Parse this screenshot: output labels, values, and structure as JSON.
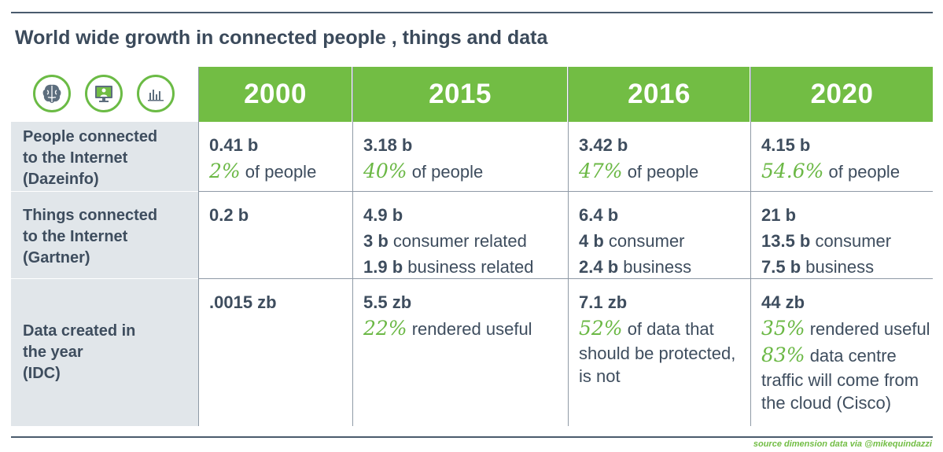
{
  "title": "World wide growth in connected people , things and data",
  "icons": [
    "brain-icon",
    "monitor-person-icon",
    "bar-chart-icon"
  ],
  "colors": {
    "accent": "#72bd44",
    "label_bg": "#e1e6ea",
    "text": "#3e4d5e"
  },
  "years": [
    "2000",
    "2015",
    "2016",
    "2020"
  ],
  "rows": [
    {
      "label": [
        "People connected",
        "to the Internet",
        "(Dazeinfo)"
      ],
      "cells": [
        {
          "value": "0.41 b",
          "pct": "2%",
          "pct_text": " of people"
        },
        {
          "value": "3.18 b",
          "pct": "40%",
          "pct_text": " of people"
        },
        {
          "value": "3.42 b",
          "pct": "47%",
          "pct_text": " of people"
        },
        {
          "value": "4.15 b",
          "pct": "54.6%",
          "pct_text": " of people"
        }
      ]
    },
    {
      "label": [
        "Things connected",
        "to the Internet",
        "(Gartner)"
      ],
      "cells": [
        {
          "value": "0.2 b"
        },
        {
          "value": "4.9 b",
          "l2b": "3 b",
          "l2t": " consumer related",
          "l3b": "1.9 b",
          "l3t": " business related"
        },
        {
          "value": "6.4 b",
          "l2b": "4 b",
          "l2t": " consumer",
          "l3b": "2.4 b",
          "l3t": " business"
        },
        {
          "value": "21 b",
          "l2b": "13.5 b",
          "l2t": " consumer",
          "l3b": "7.5 b",
          "l3t": " business"
        }
      ]
    },
    {
      "label": [
        "Data created in",
        "the year",
        "(IDC)"
      ],
      "cells": [
        {
          "value": ".0015 zb"
        },
        {
          "value": "5.5 zb",
          "pct": "22%",
          "pct_text": " rendered useful"
        },
        {
          "value": "7.1 zb",
          "pct": "52%",
          "pct_text": " of data that",
          "lines": [
            "should be protected,",
            "is not"
          ]
        },
        {
          "value": "44 zb",
          "pct": "35%",
          "pct_text": " rendered useful",
          "pct2": "83%",
          "pct2_text": " data centre",
          "lines": [
            "traffic will come from",
            "the cloud (Cisco)"
          ]
        }
      ]
    }
  ],
  "source": "source dimension data via @mikequindazzi"
}
